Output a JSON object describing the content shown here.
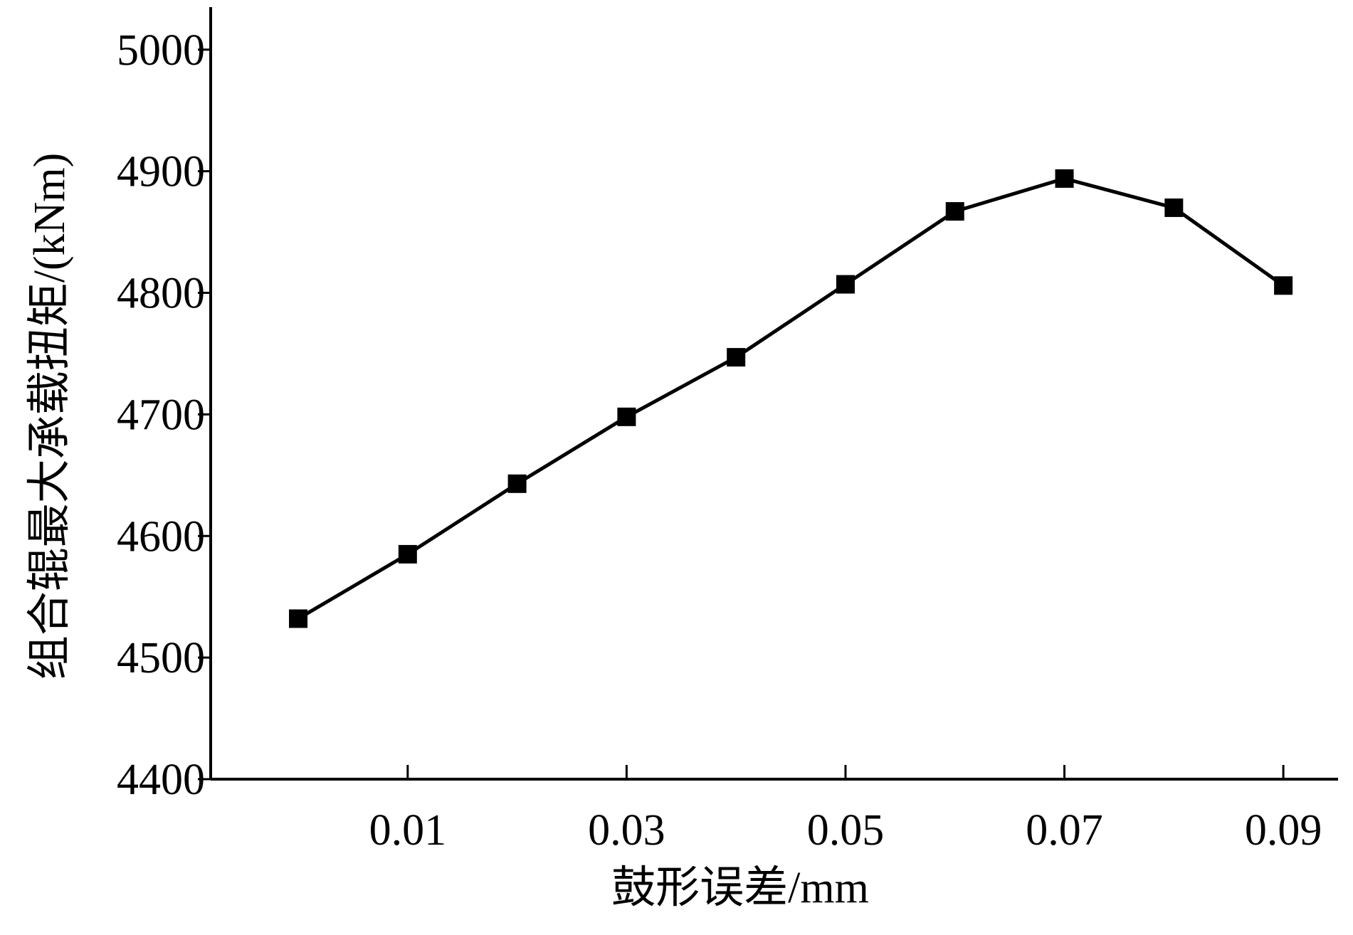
{
  "chart_data": {
    "type": "line",
    "title": "",
    "xlabel": "鼓形误差/mm",
    "ylabel": "组合辊最大承载扭矩/(kNm)",
    "x_tick_labels": [
      "0.01",
      "0.03",
      "0.05",
      "0.07",
      "0.09"
    ],
    "x_ticks": [
      0.01,
      0.03,
      0.05,
      0.07,
      0.09
    ],
    "y_tick_labels": [
      "4400",
      "4500",
      "4600",
      "4700",
      "4800",
      "4900",
      "5000"
    ],
    "y_ticks": [
      4400,
      4500,
      4600,
      4700,
      4800,
      4900,
      5000
    ],
    "xlim": [
      -0.008,
      0.095
    ],
    "ylim": [
      4400,
      5035
    ],
    "grid": false,
    "series": [
      {
        "marker": "square",
        "color": "#000000",
        "x": [
          0.0,
          0.01,
          0.02,
          0.03,
          0.04,
          0.05,
          0.06,
          0.07,
          0.08,
          0.09
        ],
        "y": [
          4532,
          4585,
          4643,
          4698,
          4747,
          4807,
          4867,
          4894,
          4870,
          4806
        ]
      }
    ]
  }
}
